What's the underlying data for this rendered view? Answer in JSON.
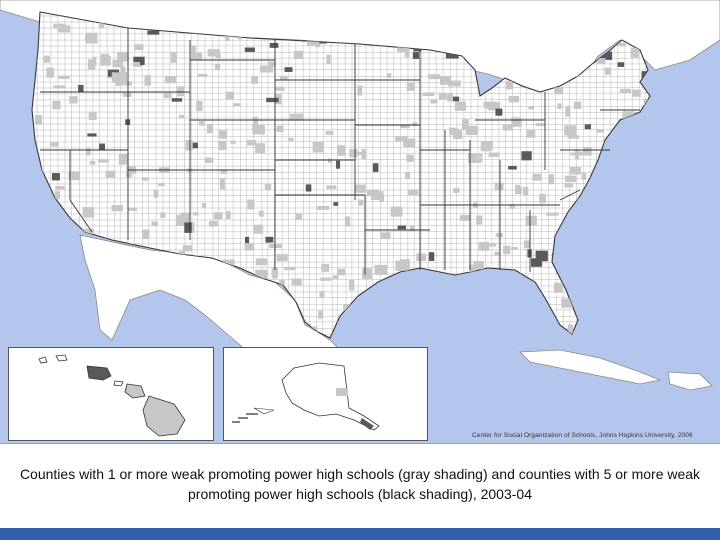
{
  "map": {
    "colors": {
      "ocean": "#b4c6ec",
      "land_neighbor": "#ffffff",
      "county_none": "#ffffff",
      "county_gray": "#c7c7c7",
      "county_black": "#595959",
      "county_lines": "#9a9a9a",
      "state_lines": "#333333"
    },
    "credit": "Center for Social Organization of Schools, Johns Hopkins University, 2006"
  },
  "caption": "Counties with 1 or more weak promoting power high schools (gray shading) and counties with 5 or more weak promoting power high schools (black shading), 2003-04"
}
